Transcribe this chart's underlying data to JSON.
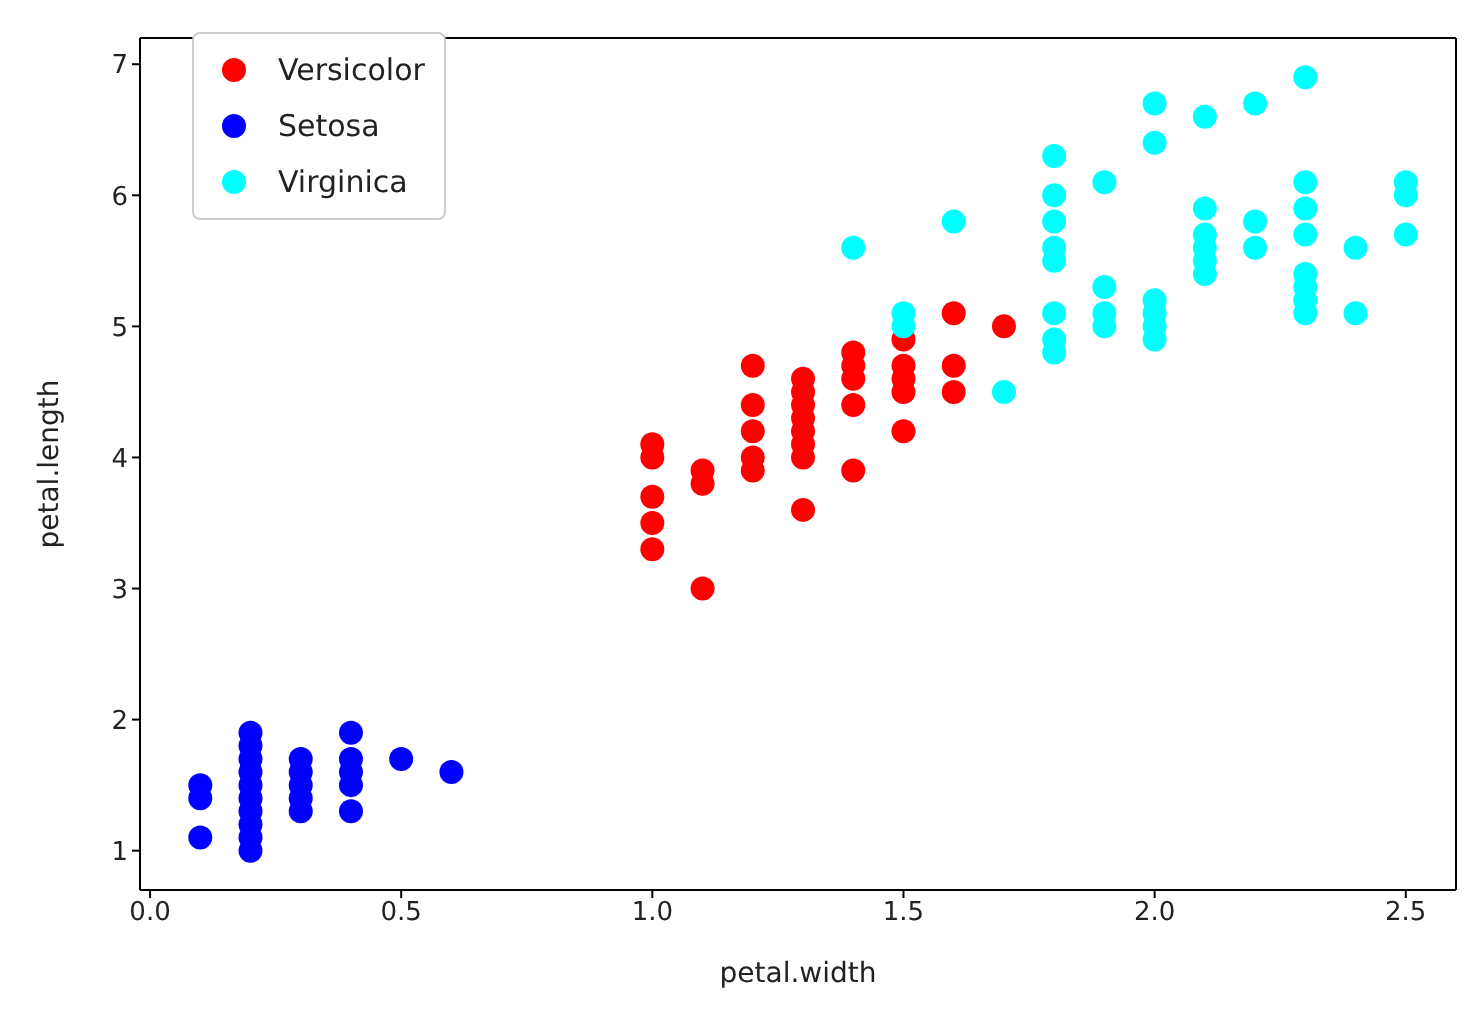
{
  "chart_data": {
    "type": "scatter",
    "xlabel": "petal.width",
    "ylabel": "petal.length",
    "xlim": [
      -0.02,
      2.6
    ],
    "ylim": [
      0.7,
      7.2
    ],
    "xticks": [
      {
        "value": 0,
        "label": "0.0"
      },
      0.5,
      {
        "value": 1,
        "label": "1.0"
      },
      1.5,
      {
        "value": 2,
        "label": "2.0"
      },
      2.5
    ],
    "yticks": [
      1,
      2,
      3,
      4,
      5,
      6,
      7
    ],
    "legend": "top left",
    "marker": "circle",
    "series": [
      {
        "name": "Versicolor",
        "color": "#ff0000",
        "x": [
          1.0,
          1.0,
          1.0,
          1.0,
          1.0,
          1.1,
          1.1,
          1.1,
          1.2,
          1.2,
          1.2,
          1.2,
          1.2,
          1.3,
          1.3,
          1.3,
          1.3,
          1.3,
          1.3,
          1.3,
          1.3,
          1.4,
          1.4,
          1.4,
          1.4,
          1.4,
          1.5,
          1.5,
          1.5,
          1.5,
          1.5,
          1.6,
          1.6,
          1.6,
          1.7
        ],
        "values": [
          3.3,
          3.5,
          3.7,
          4.0,
          4.1,
          3.0,
          3.8,
          3.9,
          3.9,
          4.0,
          4.2,
          4.4,
          4.7,
          3.6,
          4.0,
          4.1,
          4.2,
          4.3,
          4.4,
          4.5,
          4.6,
          3.9,
          4.4,
          4.6,
          4.7,
          4.8,
          4.2,
          4.5,
          4.6,
          4.7,
          4.9,
          4.5,
          4.7,
          5.1,
          5.0
        ]
      },
      {
        "name": "Setosa",
        "color": "#0000ff",
        "x": [
          0.1,
          0.1,
          0.1,
          0.2,
          0.2,
          0.2,
          0.2,
          0.2,
          0.2,
          0.2,
          0.2,
          0.2,
          0.2,
          0.3,
          0.3,
          0.3,
          0.3,
          0.3,
          0.4,
          0.4,
          0.4,
          0.4,
          0.4,
          0.5,
          0.6
        ],
        "values": [
          1.1,
          1.4,
          1.5,
          1.0,
          1.1,
          1.2,
          1.3,
          1.4,
          1.5,
          1.6,
          1.7,
          1.8,
          1.9,
          1.3,
          1.4,
          1.5,
          1.6,
          1.7,
          1.3,
          1.5,
          1.6,
          1.7,
          1.9,
          1.7,
          1.6
        ]
      },
      {
        "name": "Virginica",
        "color": "#00ffff",
        "x": [
          1.4,
          1.5,
          1.5,
          1.6,
          1.7,
          1.8,
          1.8,
          1.8,
          1.8,
          1.8,
          1.8,
          1.8,
          1.8,
          1.9,
          1.9,
          1.9,
          1.9,
          2.0,
          2.0,
          2.0,
          2.0,
          2.0,
          2.0,
          2.1,
          2.1,
          2.1,
          2.1,
          2.1,
          2.1,
          2.2,
          2.2,
          2.2,
          2.3,
          2.3,
          2.3,
          2.3,
          2.3,
          2.3,
          2.3,
          2.3,
          2.4,
          2.4,
          2.5,
          2.5,
          2.5
        ],
        "values": [
          5.6,
          5.0,
          5.1,
          5.8,
          4.5,
          4.8,
          4.9,
          5.1,
          5.5,
          5.6,
          5.8,
          6.0,
          6.3,
          5.0,
          5.1,
          5.3,
          6.1,
          4.9,
          5.0,
          5.1,
          5.2,
          6.4,
          6.7,
          5.4,
          5.5,
          5.6,
          5.7,
          5.9,
          6.6,
          5.6,
          5.8,
          6.7,
          5.1,
          5.2,
          5.3,
          5.4,
          5.7,
          5.9,
          6.1,
          6.9,
          5.1,
          5.6,
          5.7,
          6.0,
          6.1
        ]
      }
    ]
  }
}
